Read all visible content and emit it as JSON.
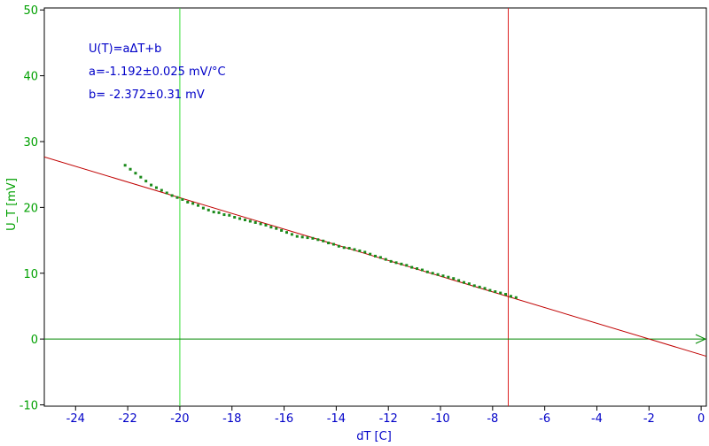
{
  "chart_data": {
    "type": "scatter",
    "xlabel": "dT [C]",
    "ylabel": "U_T [mV]",
    "xlim": [
      -25.2,
      0.2
    ],
    "ylim": [
      -10.2,
      50.3
    ],
    "x_ticks": [
      -24,
      -22,
      -20,
      -18,
      -16,
      -14,
      -12,
      -10,
      -8,
      -6,
      -4,
      -2,
      0
    ],
    "y_ticks": [
      -10,
      0,
      10,
      20,
      30,
      40,
      50
    ],
    "annotations": [
      "U(T)=aΔT+b",
      "a=-1.192±0.025 mV/°C",
      "b= -2.372±0.31 mV"
    ],
    "fit": {
      "slope": -1.192,
      "intercept": -2.372,
      "x_range": [
        -25.2,
        0.2
      ]
    },
    "vertical_markers": [
      {
        "x": -20.0,
        "color": "#33dd33"
      },
      {
        "x": -7.4,
        "color": "#dd2222"
      }
    ],
    "zero_line": {
      "y": 0,
      "color": "#008800",
      "arrow": true
    },
    "point_color": "#1a8a1a",
    "fit_color": "#c00000",
    "series": [
      {
        "x": [
          -22.1,
          -21.9,
          -21.7,
          -21.5,
          -21.3,
          -21.1,
          -20.9,
          -20.7,
          -20.5,
          -20.3,
          -20.1,
          -19.9,
          -19.7,
          -19.5,
          -19.3,
          -19.1,
          -18.9,
          -18.7,
          -18.5,
          -18.3,
          -18.1,
          -17.9,
          -17.7,
          -17.5,
          -17.3,
          -17.1,
          -16.9,
          -16.7,
          -16.5,
          -16.3,
          -16.1,
          -15.9,
          -15.7,
          -15.5,
          -15.3,
          -15.1,
          -14.9,
          -14.7,
          -14.5,
          -14.3,
          -14.1,
          -13.9,
          -13.7,
          -13.5,
          -13.3,
          -13.1,
          -12.9,
          -12.7,
          -12.5,
          -12.3,
          -12.1,
          -11.9,
          -11.7,
          -11.5,
          -11.3,
          -11.1,
          -10.9,
          -10.7,
          -10.5,
          -10.3,
          -10.1,
          -9.9,
          -9.7,
          -9.5,
          -9.3,
          -9.1,
          -8.9,
          -8.7,
          -8.5,
          -8.3,
          -8.1,
          -7.9,
          -7.7,
          -7.5,
          -7.3,
          -7.1
        ],
        "y": [
          26.4,
          25.8,
          25.2,
          24.6,
          24.0,
          23.4,
          23.0,
          22.6,
          22.2,
          21.8,
          21.5,
          21.2,
          20.8,
          20.6,
          20.3,
          19.9,
          19.6,
          19.3,
          19.2,
          18.9,
          18.8,
          18.5,
          18.3,
          18.1,
          17.9,
          17.7,
          17.5,
          17.3,
          17.0,
          16.8,
          16.5,
          16.2,
          15.9,
          15.6,
          15.5,
          15.4,
          15.3,
          15.1,
          14.9,
          14.6,
          14.4,
          14.1,
          13.9,
          13.8,
          13.6,
          13.4,
          13.2,
          12.9,
          12.6,
          12.4,
          12.1,
          11.8,
          11.6,
          11.4,
          11.2,
          10.9,
          10.7,
          10.5,
          10.2,
          10.0,
          9.8,
          9.6,
          9.4,
          9.2,
          8.9,
          8.6,
          8.4,
          8.1,
          7.9,
          7.7,
          7.4,
          7.2,
          7.0,
          6.8,
          6.5,
          6.3
        ]
      }
    ]
  }
}
